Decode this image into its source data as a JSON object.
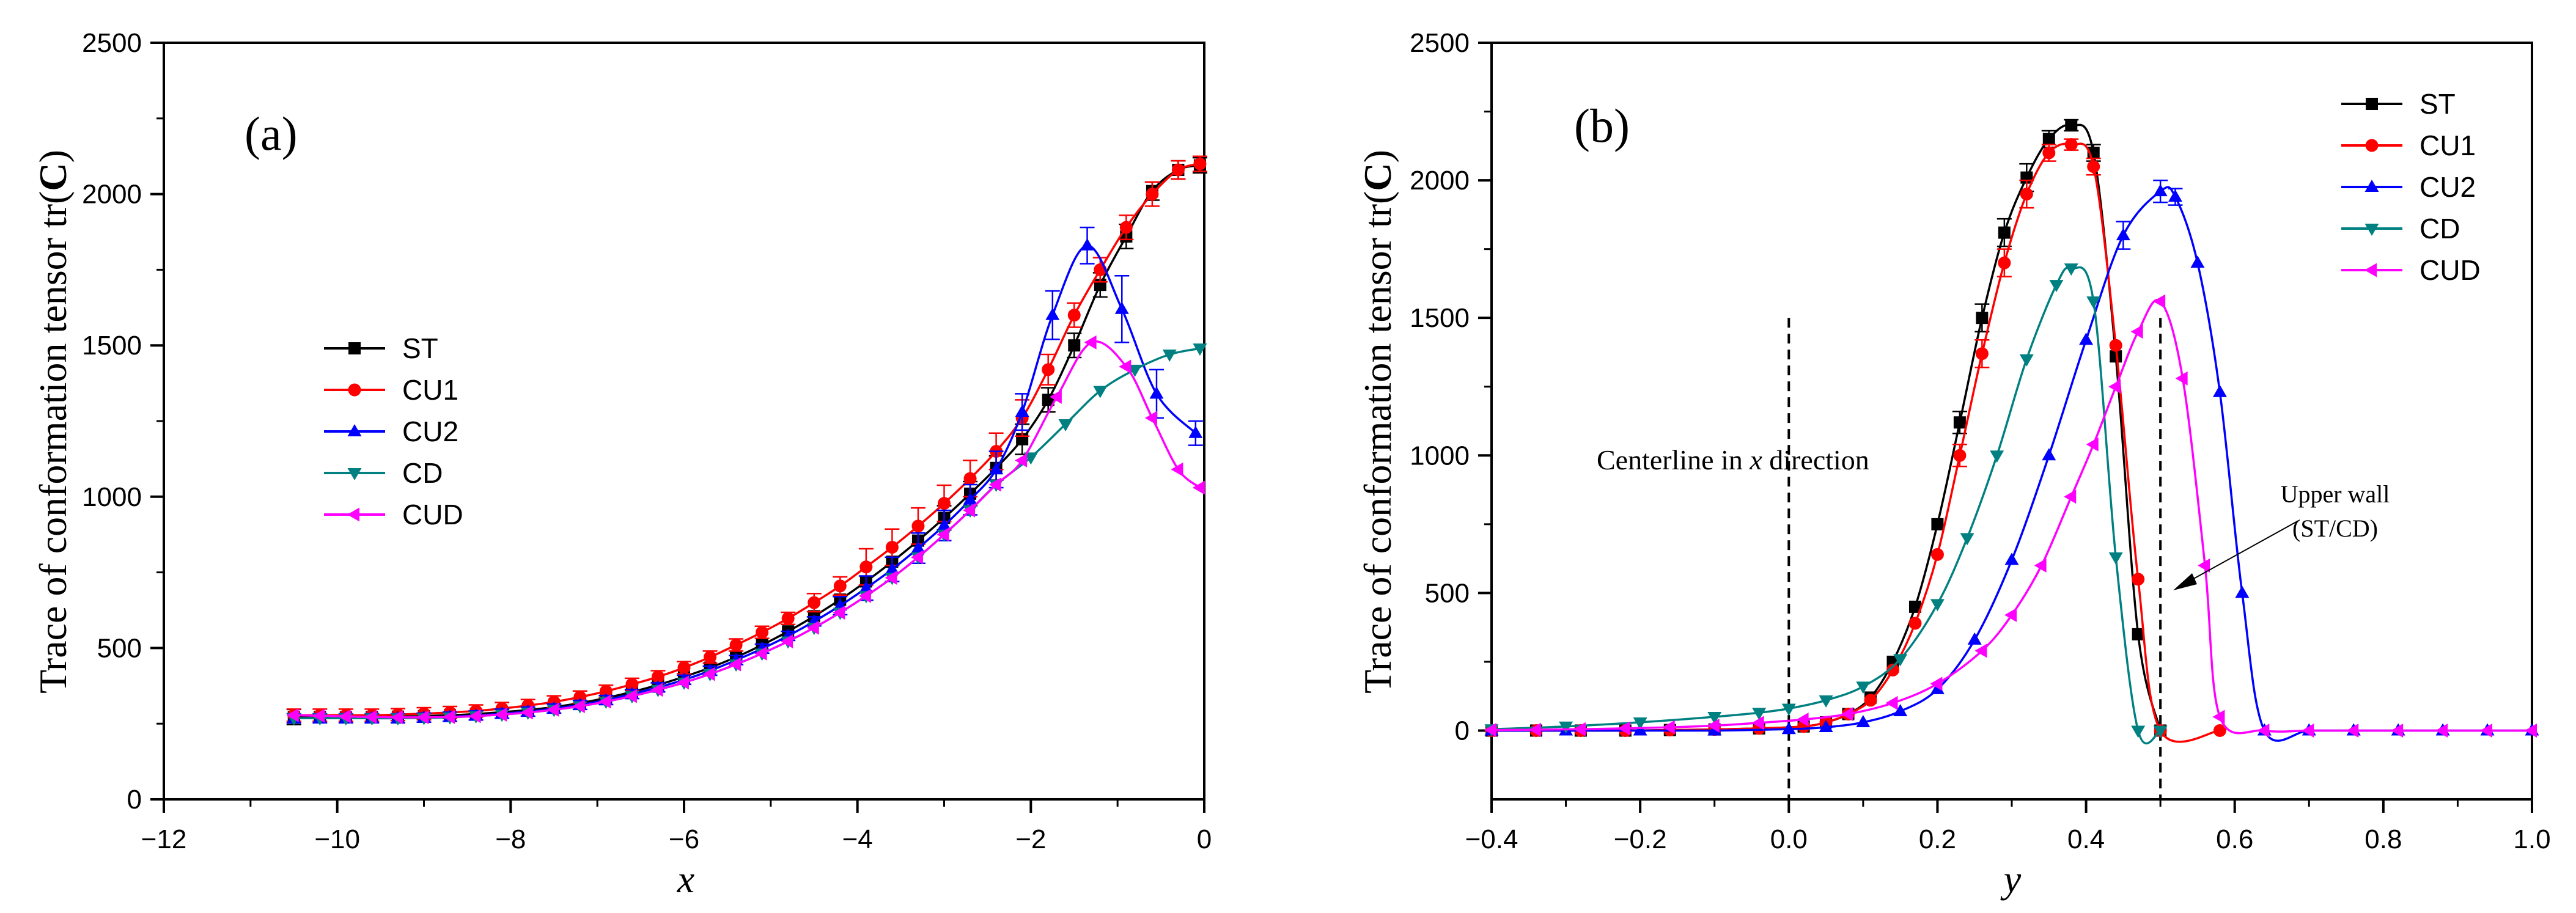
{
  "chart_data": [
    {
      "type": "line",
      "panel_label": "(a)",
      "xlabel": "x",
      "ylabel_prefix": "Trace of conformation tensor tr(",
      "ylabel_symbol": "C",
      "ylabel_suffix": ")",
      "xlim": [
        -12,
        0
      ],
      "ylim": [
        0,
        2500
      ],
      "xticks": [
        -12,
        -10,
        -8,
        -6,
        -4,
        -2,
        0
      ],
      "yticks": [
        0,
        500,
        1000,
        1500,
        2000,
        2500
      ],
      "legend_position": "center-left",
      "grid": false,
      "series": [
        {
          "name": "ST",
          "color": "#000000",
          "marker": "square",
          "x": [
            -10.5,
            -10.2,
            -9.9,
            -9.6,
            -9.3,
            -9.0,
            -8.7,
            -8.4,
            -8.1,
            -7.8,
            -7.5,
            -7.2,
            -6.9,
            -6.6,
            -6.3,
            -6.0,
            -5.7,
            -5.4,
            -5.1,
            -4.8,
            -4.5,
            -4.2,
            -3.9,
            -3.6,
            -3.3,
            -3.0,
            -2.7,
            -2.4,
            -2.1,
            -1.8,
            -1.5,
            -1.2,
            -0.9,
            -0.6,
            -0.3,
            -0.05
          ],
          "y": [
            272,
            272,
            271,
            272,
            273,
            275,
            278,
            282,
            288,
            295,
            305,
            318,
            335,
            355,
            378,
            405,
            435,
            470,
            510,
            555,
            605,
            660,
            720,
            785,
            855,
            930,
            1010,
            1095,
            1190,
            1320,
            1500,
            1700,
            1860,
            2010,
            2080,
            2095
          ],
          "err": [
            25,
            0,
            0,
            0,
            0,
            0,
            0,
            0,
            0,
            0,
            0,
            0,
            0,
            0,
            0,
            0,
            0,
            0,
            0,
            0,
            0,
            0,
            0,
            0,
            0,
            40,
            40,
            40,
            50,
            40,
            40,
            40,
            40,
            30,
            30,
            25
          ]
        },
        {
          "name": "CU1",
          "color": "#ff0000",
          "marker": "circle",
          "x": [
            -10.5,
            -10.2,
            -9.9,
            -9.6,
            -9.3,
            -9.0,
            -8.7,
            -8.4,
            -8.1,
            -7.8,
            -7.5,
            -7.2,
            -6.9,
            -6.6,
            -6.3,
            -6.0,
            -5.7,
            -5.4,
            -5.1,
            -4.8,
            -4.5,
            -4.2,
            -3.9,
            -3.6,
            -3.3,
            -3.0,
            -2.7,
            -2.4,
            -2.1,
            -1.8,
            -1.5,
            -1.2,
            -0.9,
            -0.6,
            -0.3,
            -0.05
          ],
          "y": [
            278,
            278,
            278,
            278,
            280,
            283,
            287,
            292,
            300,
            310,
            322,
            338,
            357,
            380,
            405,
            435,
            470,
            510,
            552,
            598,
            650,
            705,
            768,
            833,
            903,
            978,
            1060,
            1150,
            1260,
            1420,
            1600,
            1750,
            1890,
            2000,
            2080,
            2100
          ],
          "err": [
            20,
            20,
            20,
            20,
            20,
            20,
            20,
            20,
            20,
            20,
            20,
            20,
            20,
            20,
            20,
            20,
            20,
            20,
            20,
            20,
            30,
            30,
            60,
            60,
            60,
            60,
            60,
            60,
            60,
            50,
            40,
            40,
            40,
            40,
            30,
            25
          ]
        },
        {
          "name": "CU2",
          "color": "#0000ff",
          "marker": "triangle-up",
          "x": [
            -10.5,
            -10.2,
            -9.9,
            -9.6,
            -9.3,
            -9.0,
            -8.7,
            -8.4,
            -8.1,
            -7.8,
            -7.5,
            -7.2,
            -6.9,
            -6.6,
            -6.3,
            -6.0,
            -5.7,
            -5.4,
            -5.1,
            -4.8,
            -4.5,
            -4.2,
            -3.9,
            -3.6,
            -3.3,
            -3.0,
            -2.7,
            -2.4,
            -2.1,
            -1.75,
            -1.35,
            -0.95,
            -0.55,
            -0.1
          ],
          "y": [
            268,
            268,
            268,
            268,
            268,
            270,
            273,
            277,
            283,
            290,
            300,
            312,
            328,
            348,
            370,
            395,
            425,
            460,
            498,
            540,
            588,
            640,
            698,
            760,
            830,
            905,
            990,
            1090,
            1280,
            1600,
            1830,
            1620,
            1340,
            1210
          ],
          "err": [
            15,
            15,
            15,
            15,
            15,
            15,
            15,
            15,
            15,
            15,
            15,
            15,
            15,
            15,
            15,
            15,
            15,
            15,
            15,
            15,
            15,
            30,
            40,
            40,
            50,
            50,
            50,
            60,
            60,
            80,
            60,
            110,
            80,
            40
          ]
        },
        {
          "name": "CD",
          "color": "#008080",
          "marker": "triangle-down",
          "x": [
            -10.5,
            -10.2,
            -9.9,
            -9.6,
            -9.3,
            -9.0,
            -8.7,
            -8.4,
            -8.1,
            -7.8,
            -7.5,
            -7.2,
            -6.9,
            -6.6,
            -6.3,
            -6.0,
            -5.7,
            -5.4,
            -5.1,
            -4.8,
            -4.5,
            -4.2,
            -3.9,
            -3.6,
            -3.3,
            -3.0,
            -2.7,
            -2.4,
            -2.0,
            -1.6,
            -1.2,
            -0.8,
            -0.4,
            -0.05
          ],
          "y": [
            268,
            268,
            268,
            268,
            268,
            269,
            271,
            275,
            280,
            287,
            296,
            308,
            323,
            341,
            362,
            386,
            414,
            446,
            482,
            522,
            567,
            617,
            672,
            732,
            800,
            875,
            955,
            1040,
            1130,
            1240,
            1350,
            1420,
            1470,
            1490
          ],
          "err": [
            0,
            0,
            0,
            0,
            0,
            0,
            0,
            0,
            0,
            0,
            0,
            0,
            0,
            0,
            0,
            0,
            0,
            0,
            0,
            0,
            0,
            0,
            0,
            0,
            0,
            0,
            0,
            0,
            0,
            0,
            0,
            0,
            0,
            0
          ]
        },
        {
          "name": "CUD",
          "color": "#ff00ff",
          "marker": "triangle-left",
          "x": [
            -10.5,
            -10.2,
            -9.9,
            -9.6,
            -9.3,
            -9.0,
            -8.7,
            -8.4,
            -8.1,
            -7.8,
            -7.5,
            -7.2,
            -6.9,
            -6.6,
            -6.3,
            -6.0,
            -5.7,
            -5.4,
            -5.1,
            -4.8,
            -4.5,
            -4.2,
            -3.9,
            -3.6,
            -3.3,
            -3.0,
            -2.7,
            -2.4,
            -2.1,
            -1.7,
            -1.3,
            -0.9,
            -0.6,
            -0.3,
            -0.05
          ],
          "y": [
            278,
            276,
            274,
            272,
            271,
            271,
            272,
            275,
            280,
            287,
            296,
            308,
            323,
            341,
            362,
            386,
            414,
            446,
            482,
            522,
            567,
            617,
            672,
            732,
            800,
            875,
            955,
            1040,
            1120,
            1330,
            1510,
            1430,
            1260,
            1090,
            1030
          ],
          "err": [
            0,
            0,
            0,
            0,
            0,
            0,
            0,
            0,
            0,
            0,
            0,
            0,
            0,
            0,
            0,
            0,
            0,
            0,
            0,
            0,
            0,
            0,
            0,
            0,
            0,
            0,
            0,
            0,
            0,
            0,
            0,
            0,
            0,
            0,
            0
          ]
        }
      ],
      "annotations": []
    },
    {
      "type": "line",
      "panel_label": "(b)",
      "xlabel": "y",
      "ylabel_prefix": "Trace of conformation tensor tr(",
      "ylabel_symbol": "C",
      "ylabel_suffix": ")",
      "xlim": [
        -0.4,
        1.0
      ],
      "ylim": [
        -250,
        2500
      ],
      "xticks": [
        -0.4,
        -0.2,
        0.0,
        0.2,
        0.4,
        0.6,
        0.8,
        1.0
      ],
      "yticks": [
        0,
        500,
        1000,
        1500,
        2000,
        2500
      ],
      "legend_position": "top-right",
      "grid": false,
      "vlines": [
        0.0,
        0.5
      ],
      "series": [
        {
          "name": "ST",
          "color": "#000000",
          "marker": "square",
          "x": [
            -0.4,
            -0.34,
            -0.28,
            -0.22,
            -0.16,
            -0.1,
            -0.04,
            0.02,
            0.05,
            0.08,
            0.11,
            0.14,
            0.17,
            0.2,
            0.23,
            0.26,
            0.29,
            0.32,
            0.35,
            0.38,
            0.41,
            0.44,
            0.47,
            0.5
          ],
          "y": [
            0,
            0,
            0,
            0,
            2,
            4,
            8,
            15,
            30,
            60,
            120,
            250,
            450,
            750,
            1120,
            1500,
            1810,
            2010,
            2150,
            2200,
            2100,
            1360,
            350,
            0
          ],
          "err": [
            0,
            0,
            0,
            0,
            0,
            0,
            0,
            0,
            0,
            0,
            0,
            0,
            0,
            0,
            40,
            50,
            50,
            50,
            30,
            20,
            30,
            0,
            0,
            0
          ]
        },
        {
          "name": "CU1",
          "color": "#ff0000",
          "marker": "circle",
          "x": [
            -0.4,
            -0.34,
            -0.28,
            -0.22,
            -0.16,
            -0.1,
            -0.04,
            0.02,
            0.05,
            0.08,
            0.11,
            0.14,
            0.17,
            0.2,
            0.23,
            0.26,
            0.29,
            0.32,
            0.35,
            0.38,
            0.41,
            0.44,
            0.47,
            0.5,
            0.58
          ],
          "y": [
            0,
            0,
            0,
            0,
            2,
            4,
            8,
            15,
            30,
            60,
            110,
            220,
            390,
            640,
            1000,
            1370,
            1700,
            1950,
            2100,
            2130,
            2050,
            1400,
            550,
            0,
            0
          ],
          "err": [
            0,
            0,
            0,
            0,
            0,
            0,
            0,
            0,
            0,
            0,
            0,
            0,
            0,
            0,
            40,
            50,
            50,
            50,
            30,
            20,
            30,
            0,
            0,
            0,
            0
          ]
        },
        {
          "name": "CU2",
          "color": "#0000ff",
          "marker": "triangle-up",
          "x": [
            -0.4,
            -0.3,
            -0.2,
            -0.1,
            0.0,
            0.05,
            0.1,
            0.15,
            0.2,
            0.25,
            0.3,
            0.35,
            0.4,
            0.45,
            0.5,
            0.52,
            0.55,
            0.58,
            0.61,
            0.64,
            0.7,
            0.76,
            0.82,
            0.88,
            0.94,
            1.0
          ],
          "y": [
            0,
            0,
            0,
            0,
            5,
            12,
            30,
            70,
            150,
            330,
            620,
            1000,
            1420,
            1800,
            1960,
            1940,
            1700,
            1230,
            500,
            0,
            0,
            0,
            0,
            0,
            0,
            0
          ],
          "err": [
            0,
            0,
            0,
            0,
            0,
            0,
            0,
            0,
            0,
            0,
            0,
            0,
            0,
            50,
            40,
            30,
            0,
            0,
            0,
            0,
            0,
            0,
            0,
            0,
            0,
            0
          ]
        },
        {
          "name": "CD",
          "color": "#008080",
          "marker": "triangle-down",
          "x": [
            -0.4,
            -0.3,
            -0.2,
            -0.1,
            -0.04,
            0.0,
            0.05,
            0.1,
            0.15,
            0.2,
            0.24,
            0.28,
            0.32,
            0.36,
            0.38,
            0.41,
            0.44,
            0.47,
            0.5
          ],
          "y": [
            5,
            15,
            30,
            50,
            65,
            80,
            110,
            160,
            260,
            460,
            700,
            1000,
            1350,
            1620,
            1680,
            1560,
            630,
            0,
            0
          ],
          "err": [
            0,
            0,
            0,
            0,
            0,
            0,
            0,
            0,
            0,
            0,
            0,
            0,
            0,
            0,
            0,
            0,
            0,
            0,
            0
          ]
        },
        {
          "name": "CUD",
          "color": "#ff00ff",
          "marker": "triangle-left",
          "x": [
            -0.4,
            -0.34,
            -0.28,
            -0.22,
            -0.16,
            -0.1,
            -0.04,
            0.02,
            0.08,
            0.14,
            0.2,
            0.26,
            0.3,
            0.34,
            0.38,
            0.41,
            0.44,
            0.47,
            0.5,
            0.53,
            0.56,
            0.58,
            0.64,
            0.7,
            0.76,
            0.82,
            0.88,
            0.94,
            1.0
          ],
          "y": [
            2,
            3,
            5,
            8,
            12,
            18,
            28,
            40,
            60,
            100,
            170,
            290,
            420,
            600,
            850,
            1040,
            1250,
            1450,
            1560,
            1280,
            600,
            50,
            0,
            0,
            0,
            0,
            0,
            0,
            0
          ],
          "err": [
            0,
            0,
            0,
            0,
            0,
            0,
            0,
            0,
            0,
            0,
            0,
            0,
            0,
            0,
            0,
            0,
            0,
            0,
            0,
            0,
            0,
            0,
            0,
            0,
            0,
            0,
            0,
            0,
            0
          ]
        }
      ],
      "annotations": [
        {
          "name": "centerline",
          "prefix": "Centerline in ",
          "italic": "x",
          "suffix": " direction"
        },
        {
          "name": "upper-wall",
          "line1": "Upper wall",
          "line2": "(ST/CD)"
        }
      ]
    }
  ]
}
